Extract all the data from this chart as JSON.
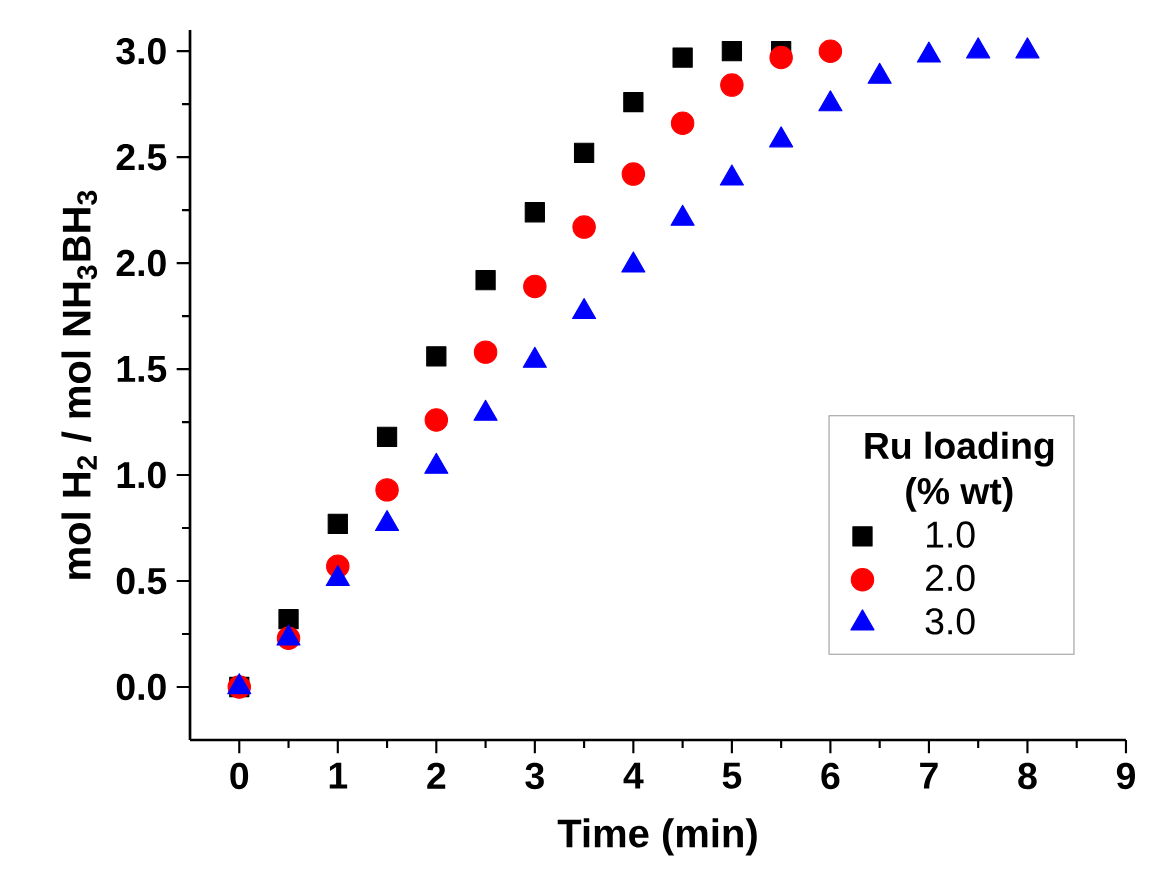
{
  "chart_data": {
    "type": "scatter",
    "xlabel": "Time (min)",
    "ylabel": "mol H$_{2}$ / mol NH$_{3}$BH$_{3}$",
    "legend_title": "Ru loading (% wt)",
    "legend": "bottom right",
    "grid": false,
    "xlim": [
      -0.5,
      9
    ],
    "xticks": [
      0,
      1,
      2,
      3,
      4,
      5,
      6,
      7,
      8,
      9
    ],
    "ylim": [
      -0.25,
      3.1
    ],
    "yticks": [
      {
        "value": 0,
        "label": "0.0"
      },
      {
        "value": 0.5,
        "label": "0.5"
      },
      {
        "value": 1,
        "label": "1.0"
      },
      {
        "value": 1.5,
        "label": "1.5"
      },
      {
        "value": 2,
        "label": "2.0"
      },
      {
        "value": 2.5,
        "label": "2.5"
      },
      {
        "value": 3,
        "label": "3.0"
      }
    ],
    "series": [
      {
        "name": "1.0",
        "color": "#000000",
        "marker": "square",
        "x": [
          0,
          0.5,
          1,
          1.5,
          2,
          2.5,
          3,
          3.5,
          4,
          4.5,
          5,
          5.5
        ],
        "values": [
          0,
          0.32,
          0.77,
          1.18,
          1.56,
          1.92,
          2.24,
          2.52,
          2.76,
          2.97,
          3.0,
          3.0
        ]
      },
      {
        "name": "2.0",
        "color": "#ff0000",
        "marker": "circle",
        "x": [
          0,
          0.5,
          1,
          1.5,
          2,
          2.5,
          3,
          3.5,
          4,
          4.5,
          5,
          5.5,
          6
        ],
        "values": [
          0,
          0.23,
          0.57,
          0.93,
          1.26,
          1.58,
          1.89,
          2.17,
          2.42,
          2.66,
          2.84,
          2.97,
          3.0
        ]
      },
      {
        "name": "3.0",
        "color": "#0000ff",
        "marker": "triangle",
        "x": [
          0,
          0.5,
          1,
          1.5,
          2,
          2.5,
          3,
          3.5,
          4,
          4.5,
          5,
          5.5,
          6,
          6.5,
          7,
          7.5,
          8
        ],
        "values": [
          0,
          0.23,
          0.51,
          0.77,
          1.04,
          1.29,
          1.54,
          1.77,
          1.99,
          2.21,
          2.4,
          2.58,
          2.75,
          2.88,
          2.98,
          3.0,
          3.0
        ]
      }
    ]
  }
}
